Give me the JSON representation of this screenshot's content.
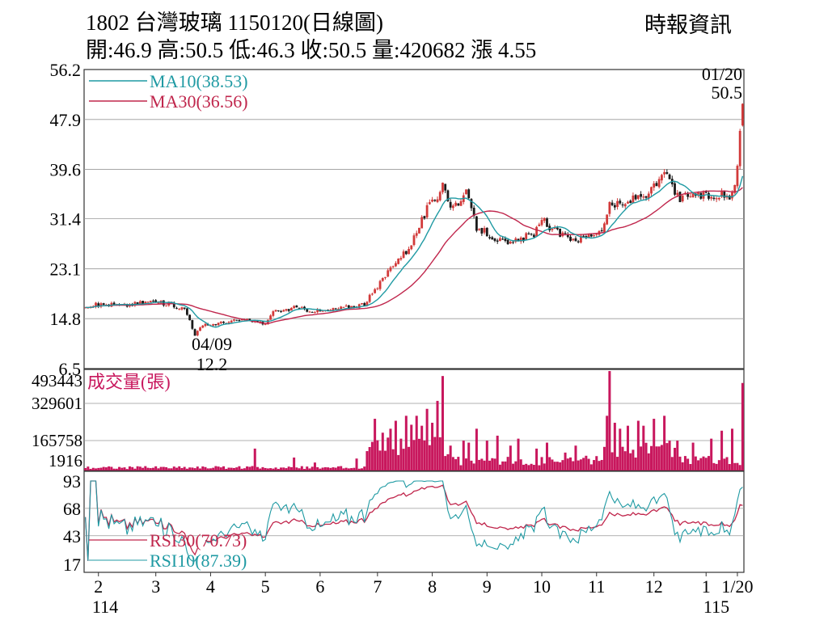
{
  "header": {
    "title": "1802  台灣玻璃 1150120(日線圖)",
    "stats": "開:46.9 高:50.5 低:46.3 收:50.5 量:420682 漲 4.55",
    "source": "時報資訊"
  },
  "colors": {
    "up": "#d23a3a",
    "down": "#1a1a1a",
    "ma10": "#1f9aa3",
    "ma30": "#c0264c",
    "volume": "#c8175d",
    "rsi10": "#1f9aa3",
    "rsi30": "#c0264c",
    "grid": "#999999"
  },
  "chart_data": {
    "type": "candlestick",
    "price_axis": {
      "ticks": [
        "56.2",
        "47.9",
        "39.6",
        "31.4",
        "23.1",
        "14.8",
        "6.5"
      ],
      "ylim": [
        6.5,
        56.2
      ]
    },
    "volume_axis": {
      "ticks": [
        "493443",
        "329601",
        "165758",
        "1916"
      ],
      "ylim": [
        1916,
        493443
      ]
    },
    "rsi_axis": {
      "ticks": [
        "93",
        "68",
        "43",
        "17"
      ],
      "ylim": [
        17,
        93
      ]
    },
    "x_ticks": [
      "2",
      "3",
      "4",
      "5",
      "6",
      "7",
      "8",
      "9",
      "10",
      "11",
      "12",
      "1",
      "1/20"
    ],
    "x_year_labels": [
      "114",
      "115"
    ],
    "legend": {
      "ma10": "MA10(38.53)",
      "ma30": "MA30(36.56)",
      "volume": "成交量(張)",
      "rsi30": "RSI30(70.73)",
      "rsi10": "RSI10(87.39)"
    },
    "annotations": {
      "low_date": "04/09",
      "low_value": "12.2",
      "last_date": "01/20",
      "last_value": "50.5"
    },
    "anchors": [
      [
        0,
        17.0
      ],
      [
        8,
        17.2
      ],
      [
        15,
        17.0
      ],
      [
        25,
        17.7
      ],
      [
        33,
        17.2
      ],
      [
        38,
        16.4
      ],
      [
        40,
        14.6
      ],
      [
        42,
        12.2
      ],
      [
        45,
        13.6
      ],
      [
        50,
        14.0
      ],
      [
        55,
        14.3
      ],
      [
        60,
        14.6
      ],
      [
        65,
        14.3
      ],
      [
        69,
        14.0
      ],
      [
        72,
        15.8
      ],
      [
        80,
        16.6
      ],
      [
        90,
        16.0
      ],
      [
        100,
        16.7
      ],
      [
        107,
        17.3
      ],
      [
        112,
        20.0
      ],
      [
        118,
        24.0
      ],
      [
        123,
        26.0
      ],
      [
        126,
        28.3
      ],
      [
        131,
        33.0
      ],
      [
        135,
        35.0
      ],
      [
        137,
        38.0
      ],
      [
        140,
        33.2
      ],
      [
        146,
        35.5
      ],
      [
        150,
        30.0
      ],
      [
        156,
        28.5
      ],
      [
        162,
        27.0
      ],
      [
        168,
        28.2
      ],
      [
        172,
        29.0
      ],
      [
        176,
        31.2
      ],
      [
        179,
        29.5
      ],
      [
        184,
        28.5
      ],
      [
        189,
        28.0
      ],
      [
        195,
        29.0
      ],
      [
        199,
        30.0
      ],
      [
        201,
        34.0
      ],
      [
        206,
        33.5
      ],
      [
        211,
        35.0
      ],
      [
        217,
        36.0
      ],
      [
        222,
        38.8
      ],
      [
        225,
        36.5
      ],
      [
        228,
        34.5
      ],
      [
        232,
        35.6
      ],
      [
        238,
        35.0
      ],
      [
        244,
        35.5
      ],
      [
        247,
        34.6
      ],
      [
        249,
        37.0
      ],
      [
        250,
        40.2
      ],
      [
        251,
        46.0
      ],
      [
        252,
        50.5
      ]
    ],
    "volume_spikes": [
      [
        65,
        0.22
      ],
      [
        80,
        0.13
      ],
      [
        88,
        0.08
      ],
      [
        104,
        0.12
      ],
      [
        111,
        0.52
      ],
      [
        114,
        0.38
      ],
      [
        117,
        0.42
      ],
      [
        119,
        0.5
      ],
      [
        121,
        0.32
      ],
      [
        123,
        0.55
      ],
      [
        125,
        0.46
      ],
      [
        127,
        0.55
      ],
      [
        129,
        0.45
      ],
      [
        131,
        0.62
      ],
      [
        133,
        0.48
      ],
      [
        135,
        0.7
      ],
      [
        137,
        0.95
      ],
      [
        140,
        0.25
      ],
      [
        145,
        0.3
      ],
      [
        147,
        0.28
      ],
      [
        150,
        0.42
      ],
      [
        154,
        0.3
      ],
      [
        158,
        0.35
      ],
      [
        163,
        0.25
      ],
      [
        166,
        0.32
      ],
      [
        173,
        0.22
      ],
      [
        177,
        0.28
      ],
      [
        184,
        0.18
      ],
      [
        188,
        0.25
      ],
      [
        200,
        0.55
      ],
      [
        201,
        1.0
      ],
      [
        203,
        0.48
      ],
      [
        205,
        0.42
      ],
      [
        208,
        0.45
      ],
      [
        212,
        0.5
      ],
      [
        214,
        0.45
      ],
      [
        218,
        0.52
      ],
      [
        222,
        0.55
      ],
      [
        224,
        0.3
      ],
      [
        227,
        0.3
      ],
      [
        233,
        0.28
      ],
      [
        240,
        0.32
      ],
      [
        244,
        0.4
      ],
      [
        248,
        0.42
      ],
      [
        252,
        0.88
      ]
    ]
  }
}
